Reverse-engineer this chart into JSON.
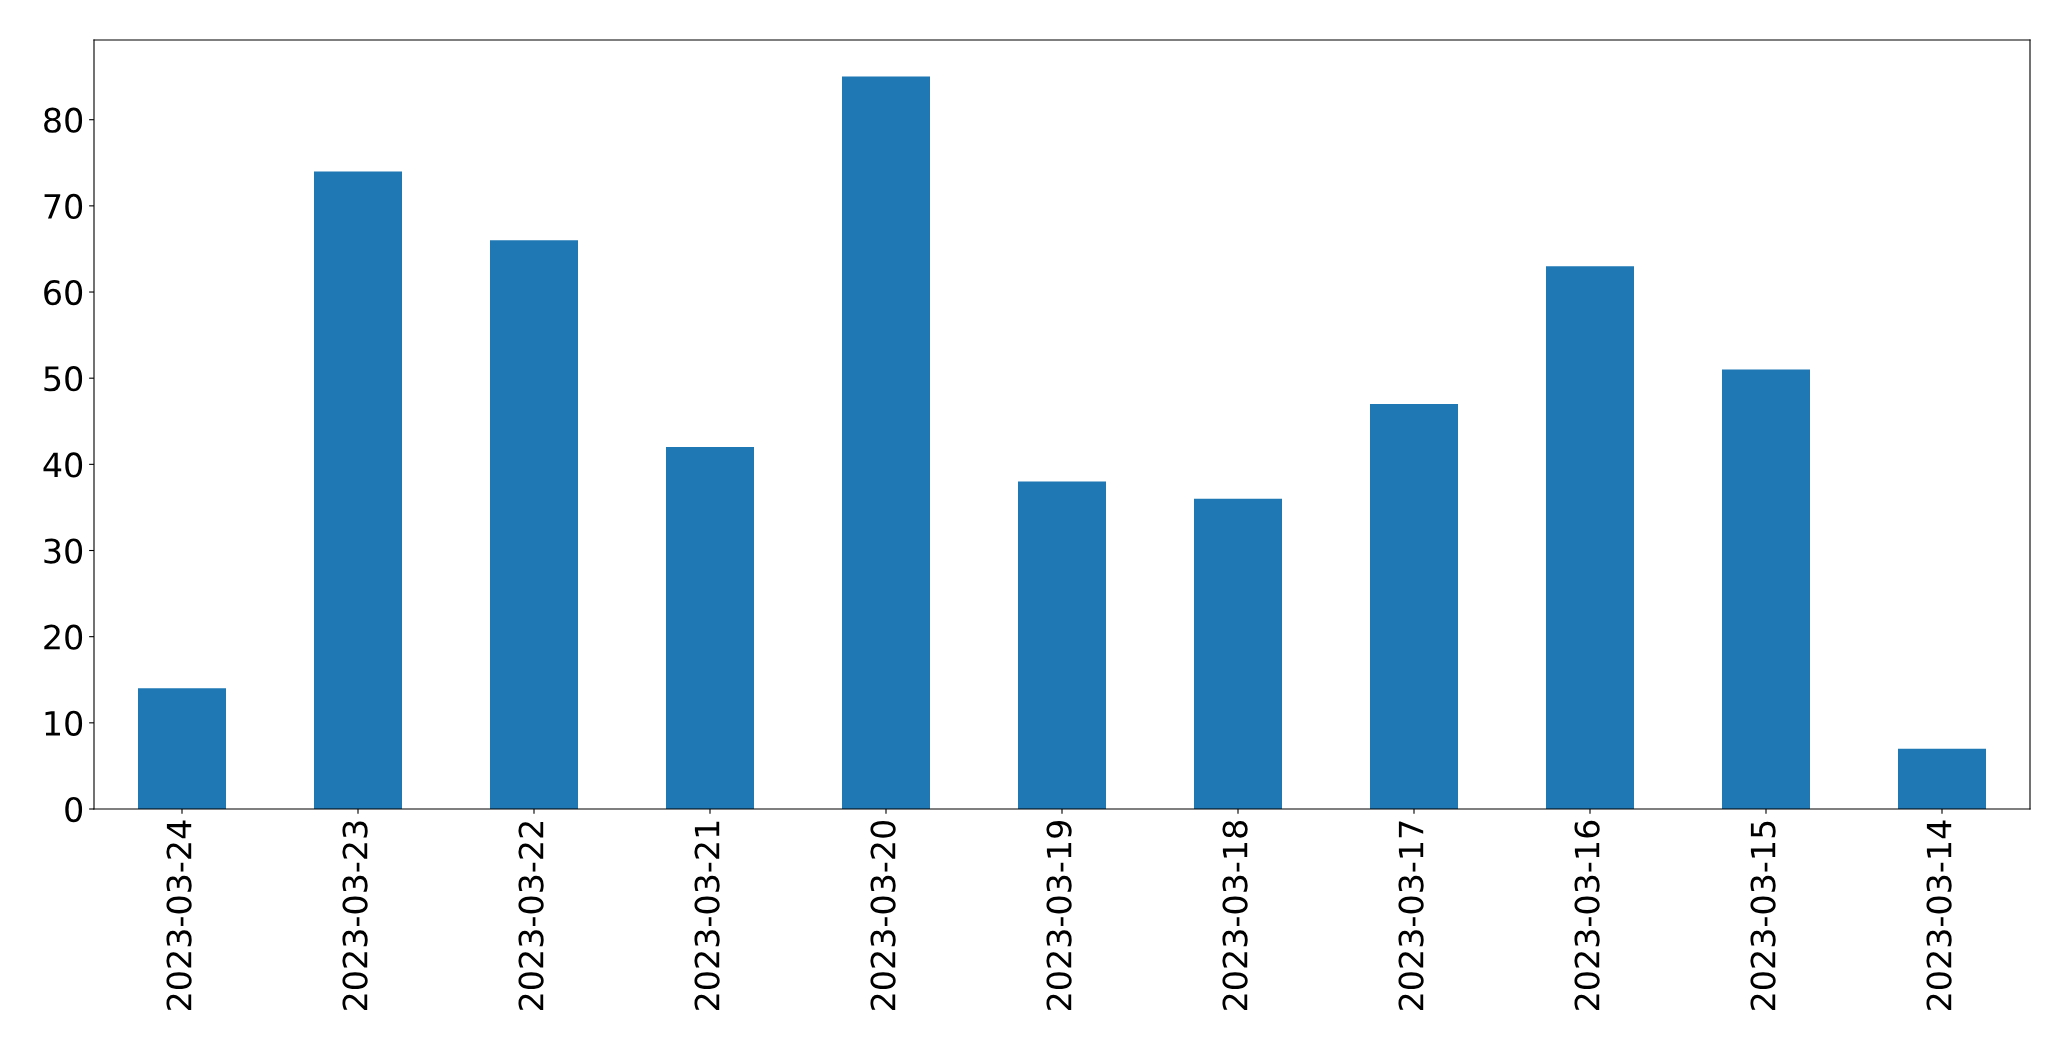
{
  "chart_data": {
    "type": "bar",
    "categories": [
      "2023-03-24",
      "2023-03-23",
      "2023-03-22",
      "2023-03-21",
      "2023-03-20",
      "2023-03-19",
      "2023-03-18",
      "2023-03-17",
      "2023-03-16",
      "2023-03-15",
      "2023-03-14"
    ],
    "values": [
      14,
      74,
      66,
      42,
      85,
      38,
      36,
      47,
      63,
      51,
      7
    ],
    "color": "#1f77b4",
    "ylim": [
      0,
      89.25
    ],
    "yticks": [
      0,
      10,
      20,
      30,
      40,
      50,
      60,
      70,
      80
    ],
    "grid": false,
    "legend": false
  }
}
